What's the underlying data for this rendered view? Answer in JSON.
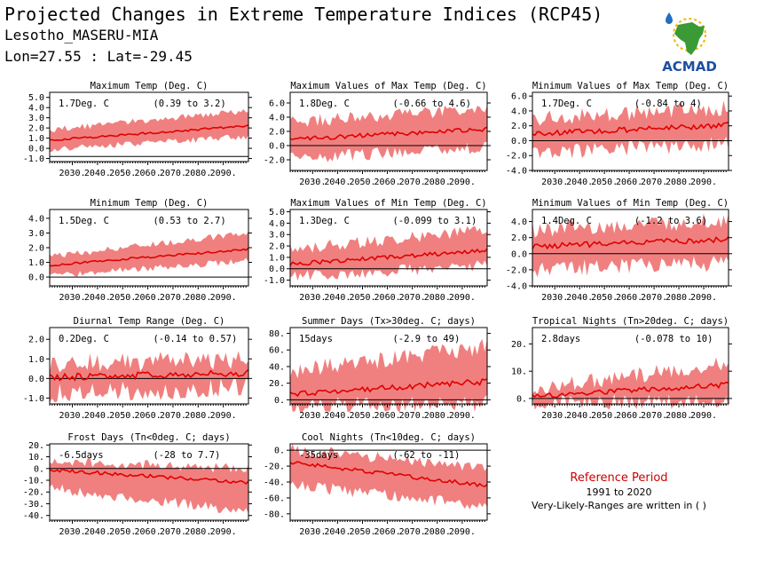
{
  "header": {
    "title": "Projected Changes in Extreme Temperature Indices (RCP45)",
    "station": "Lesotho_MASERU-MIA",
    "coords": "Lon=27.55 : Lat=-29.45"
  },
  "logo": {
    "text": "ACMAD",
    "colors": {
      "africa": "#3a9a35",
      "text": "#1e4fa0",
      "sun": "#f2b400",
      "drop": "#1e6fc0"
    }
  },
  "colors": {
    "band": "#f08080",
    "line": "#e00000",
    "zero": "#000000"
  },
  "reference": {
    "title": "Reference Period",
    "years": "1991 to 2020",
    "note": "Very-Likely-Ranges are written in ( )"
  },
  "chart_data": [
    {
      "type": "area",
      "title": "Maximum Temp (Deg. C)",
      "mean_label": "1.7Deg. C",
      "range_label": "(0.39 to 3.2)",
      "x_start": 2021,
      "x_end": 2100,
      "xticks": [
        "2030.",
        "2040.",
        "2050.",
        "2060.",
        "2070.",
        "2080.",
        "2090."
      ],
      "ylim": [
        -1.3,
        5.5
      ],
      "yticks": [
        {
          "v": -1,
          "l": "-1.0"
        },
        {
          "v": 0,
          "l": "0.0"
        },
        {
          "v": 1,
          "l": "1.0"
        },
        {
          "v": 2,
          "l": "2.0"
        },
        {
          "v": 3,
          "l": "3.0"
        },
        {
          "v": 4,
          "l": "4.0"
        },
        {
          "v": 5,
          "l": "5.0"
        }
      ],
      "zero": -0.8,
      "mean_start": 0.8,
      "mean_end": 2.2,
      "low_start": 0.0,
      "low_end": 1.3,
      "high_start": 1.7,
      "high_end": 3.6,
      "vol": 0.2
    },
    {
      "type": "area",
      "title": "Maximum Values of Max Temp (Deg. C)",
      "mean_label": "1.8Deg. C",
      "range_label": "(-0.66 to 4.6)",
      "x_start": 2021,
      "x_end": 2100,
      "xticks": [
        "2030.",
        "2040.",
        "2050.",
        "2060.",
        "2070.",
        "2080.",
        "2090."
      ],
      "ylim": [
        -3.5,
        7.5
      ],
      "yticks": [
        {
          "v": -2,
          "l": "-2.0"
        },
        {
          "v": 0,
          "l": "0.0"
        },
        {
          "v": 2,
          "l": "2.0"
        },
        {
          "v": 4,
          "l": "4.0"
        },
        {
          "v": 6,
          "l": "6.0"
        }
      ],
      "zero": 0,
      "mean_start": 0.9,
      "mean_end": 2.3,
      "low_start": -1.5,
      "low_end": 0.0,
      "high_start": 3.0,
      "high_end": 4.8,
      "vol": 0.6
    },
    {
      "type": "area",
      "title": "Minimum Values of Max Temp (Deg. C)",
      "mean_label": "1.7Deg. C",
      "range_label": "(-0.84 to 4)",
      "x_start": 2021,
      "x_end": 2100,
      "xticks": [
        "2030.",
        "2040.",
        "2050.",
        "2060.",
        "2070.",
        "2080.",
        "2090."
      ],
      "ylim": [
        -4,
        6.5
      ],
      "yticks": [
        {
          "v": -4,
          "l": "-4.0"
        },
        {
          "v": -2,
          "l": "-2.0"
        },
        {
          "v": 0,
          "l": "0.0"
        },
        {
          "v": 2,
          "l": "2.0"
        },
        {
          "v": 4,
          "l": "4.0"
        },
        {
          "v": 6,
          "l": "6.0"
        }
      ],
      "zero": 0,
      "mean_start": 0.9,
      "mean_end": 2.1,
      "low_start": -1.2,
      "low_end": 0.0,
      "high_start": 2.6,
      "high_end": 4.0,
      "vol": 0.7
    },
    {
      "type": "area",
      "title": "Minimum Temp (Deg. C)",
      "mean_label": "1.5Deg. C",
      "range_label": "(0.53 to 2.7)",
      "x_start": 2021,
      "x_end": 2100,
      "xticks": [
        "2030.",
        "2040.",
        "2050.",
        "2060.",
        "2070.",
        "2080.",
        "2090."
      ],
      "ylim": [
        -0.6,
        4.6
      ],
      "yticks": [
        {
          "v": 0,
          "l": "0.0"
        },
        {
          "v": 1,
          "l": "1.0"
        },
        {
          "v": 2,
          "l": "2.0"
        },
        {
          "v": 3,
          "l": "3.0"
        },
        {
          "v": 4,
          "l": "4.0"
        }
      ],
      "zero": 0,
      "mean_start": 0.8,
      "mean_end": 1.9,
      "low_start": 0.2,
      "low_end": 1.2,
      "high_start": 1.3,
      "high_end": 2.9,
      "vol": 0.15
    },
    {
      "type": "area",
      "title": "Maximum Values of Min Temp (Deg. C)",
      "mean_label": "1.3Deg. C",
      "range_label": "(-0.099 to 3.1)",
      "x_start": 2021,
      "x_end": 2100,
      "xticks": [
        "2030.",
        "2040.",
        "2050.",
        "2060.",
        "2070.",
        "2080.",
        "2090."
      ],
      "ylim": [
        -1.5,
        5.2
      ],
      "yticks": [
        {
          "v": -1,
          "l": "-1.0"
        },
        {
          "v": 0,
          "l": "0.0"
        },
        {
          "v": 1,
          "l": "1.0"
        },
        {
          "v": 2,
          "l": "2.0"
        },
        {
          "v": 3,
          "l": "3.0"
        },
        {
          "v": 4,
          "l": "4.0"
        },
        {
          "v": 5,
          "l": "5.0"
        }
      ],
      "zero": 0,
      "mean_start": 0.4,
      "mean_end": 1.6,
      "low_start": -0.5,
      "low_end": 0.5,
      "high_start": 1.5,
      "high_end": 3.2,
      "vol": 0.35
    },
    {
      "type": "area",
      "title": "Minimum Values of Min Temp (Deg. C)",
      "mean_label": "1.4Deg. C",
      "range_label": "(-1.2 to 3.6)",
      "x_start": 2021,
      "x_end": 2100,
      "xticks": [
        "2030.",
        "2040.",
        "2050.",
        "2060.",
        "2070.",
        "2080.",
        "2090."
      ],
      "ylim": [
        -4,
        5.5
      ],
      "yticks": [
        {
          "v": -4,
          "l": "-4.0"
        },
        {
          "v": -2,
          "l": "-2.0"
        },
        {
          "v": 0,
          "l": "0.0"
        },
        {
          "v": 2,
          "l": "2.0"
        },
        {
          "v": 4,
          "l": "4.0"
        }
      ],
      "zero": 0,
      "mean_start": 0.9,
      "mean_end": 1.8,
      "low_start": -1.5,
      "low_end": -0.8,
      "high_start": 2.5,
      "high_end": 3.8,
      "vol": 0.7
    },
    {
      "type": "area",
      "title": "Diurnal Temp Range (Deg. C)",
      "mean_label": "0.2Deg. C",
      "range_label": "(-0.14 to 0.57)",
      "x_start": 2021,
      "x_end": 2100,
      "xticks": [
        "2030.",
        "2040.",
        "2050.",
        "2060.",
        "2070.",
        "2080.",
        "2090."
      ],
      "ylim": [
        -1.3,
        2.6
      ],
      "yticks": [
        {
          "v": -1,
          "l": "-1.0"
        },
        {
          "v": 0,
          "l": "0.0"
        },
        {
          "v": 1,
          "l": "1.0"
        },
        {
          "v": 2,
          "l": "2.0"
        }
      ],
      "zero": 0,
      "mean_start": 0.05,
      "mean_end": 0.3,
      "low_start": -0.6,
      "low_end": -0.2,
      "high_start": 0.5,
      "high_end": 0.8,
      "vol": 0.35
    },
    {
      "type": "area",
      "title": "Summer Days (Tx>30deg. C; days)",
      "mean_label": "15days",
      "range_label": "(-2.9 to 49)",
      "x_start": 2021,
      "x_end": 2100,
      "xticks": [
        "2030.",
        "2040.",
        "2050.",
        "2060.",
        "2070.",
        "2080.",
        "2090."
      ],
      "ylim": [
        -5,
        87
      ],
      "yticks": [
        {
          "v": 0,
          "l": "0."
        },
        {
          "v": 20,
          "l": "20."
        },
        {
          "v": 40,
          "l": "40."
        },
        {
          "v": 60,
          "l": "60."
        },
        {
          "v": 80,
          "l": "80."
        }
      ],
      "zero": 0,
      "mean_start": 7,
      "mean_end": 22,
      "low_start": -3,
      "low_end": 0,
      "high_start": 30,
      "high_end": 60,
      "vol": 7
    },
    {
      "type": "area",
      "title": "Tropical Nights (Tn>20deg. C; days)",
      "mean_label": "2.8days",
      "range_label": "(-0.078 to 10)",
      "x_start": 2021,
      "x_end": 2100,
      "xticks": [
        "2030.",
        "2040.",
        "2050.",
        "2060.",
        "2070.",
        "2080.",
        "2090."
      ],
      "ylim": [
        -2,
        26
      ],
      "yticks": [
        {
          "v": 0,
          "l": "0."
        },
        {
          "v": 10,
          "l": "10."
        },
        {
          "v": 20,
          "l": "20."
        }
      ],
      "zero": 0,
      "mean_start": 0.8,
      "mean_end": 5,
      "low_start": 0,
      "low_end": 0,
      "high_start": 2,
      "high_end": 12,
      "vol": 2
    },
    {
      "type": "area",
      "title": "Frost Days (Tn<0deg. C; days)",
      "mean_label": "-6.5days",
      "range_label": "(-28 to 7.7)",
      "x_start": 2021,
      "x_end": 2100,
      "xticks": [
        "2030.",
        "2040.",
        "2050.",
        "2060.",
        "2070.",
        "2080.",
        "2090."
      ],
      "ylim": [
        -44,
        21
      ],
      "yticks": [
        {
          "v": -40,
          "l": "-40."
        },
        {
          "v": -30,
          "l": "-30."
        },
        {
          "v": -20,
          "l": "-20."
        },
        {
          "v": -10,
          "l": "-10."
        },
        {
          "v": 0,
          "l": "0."
        },
        {
          "v": 10,
          "l": "10."
        },
        {
          "v": 20,
          "l": "20."
        }
      ],
      "zero": 0,
      "mean_start": -1,
      "mean_end": -12,
      "low_start": -15,
      "low_end": -35,
      "high_start": 5,
      "high_end": -2,
      "vol": 3
    },
    {
      "type": "area",
      "title": "Cool Nights (Tn<10deg. C; days)",
      "mean_label": "-35days",
      "range_label": "(-62 to -11)",
      "x_start": 2021,
      "x_end": 2100,
      "xticks": [
        "2030.",
        "2040.",
        "2050.",
        "2060.",
        "2070.",
        "2080.",
        "2090."
      ],
      "ylim": [
        -88,
        8
      ],
      "yticks": [
        {
          "v": -80,
          "l": "-80."
        },
        {
          "v": -60,
          "l": "-60."
        },
        {
          "v": -40,
          "l": "-40."
        },
        {
          "v": -20,
          "l": "-20."
        },
        {
          "v": 0,
          "l": "0."
        }
      ],
      "zero": 0,
      "mean_start": -15,
      "mean_end": -45,
      "low_start": -40,
      "low_end": -68,
      "high_start": -2,
      "high_end": -25,
      "vol": 5
    }
  ]
}
